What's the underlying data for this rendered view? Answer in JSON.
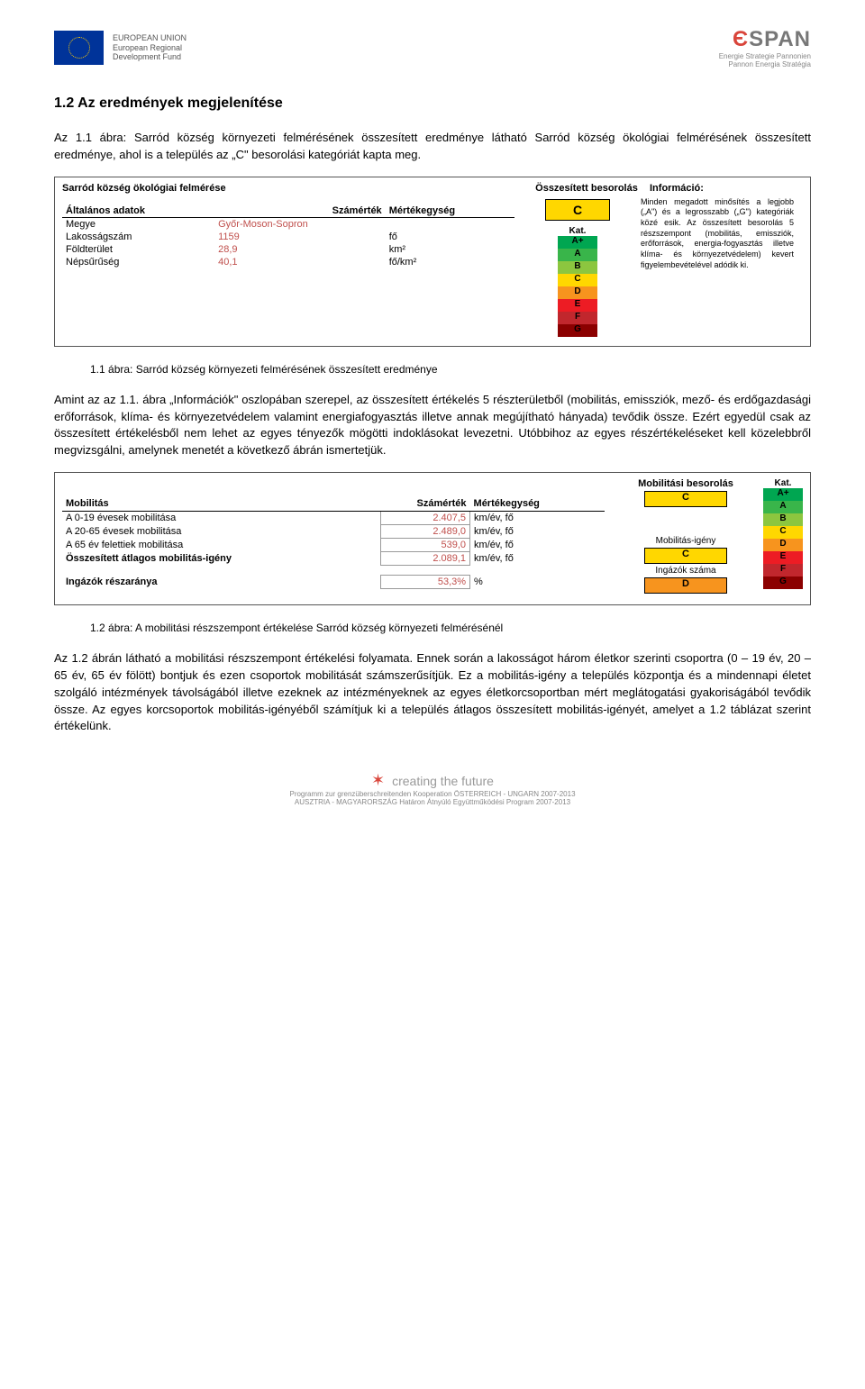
{
  "header": {
    "eu_text": "EUROPEAN UNION\nEuropean Regional\nDevelopment Fund",
    "espan_sub": "Energie Strategie Pannonien\nPannon Energia Stratégia"
  },
  "section_title": "1.2    Az eredmények megjelenítése",
  "intro_para": "Az 1.1 ábra: Sarród község környezeti felmérésének összesített eredménye látható Sarród község ökológiai felmérésének összesített eredménye, ahol is a település az „C\" besorolási kategóriát kapta meg.",
  "panel1": {
    "title": "Sarród község ökológiai felmérése",
    "legend_label": "Összesített besorolás",
    "info_label": "Információ:",
    "grade": "C",
    "grade_bg": "#ffd700",
    "table": {
      "headers": [
        "Általános adatok",
        "Számérték",
        "Mértékegység"
      ],
      "rows": [
        [
          "Megye",
          "Győr-Moson-Sopron",
          ""
        ],
        [
          "Lakosságszám",
          "1159",
          "fő"
        ],
        [
          "Földterület",
          "28,9",
          "km²"
        ],
        [
          "Népsűrűség",
          "40,1",
          "fő/km²"
        ]
      ]
    },
    "info_text": "Minden megadott minősítés a legjobb („A\") és a legrosszabb („G\") kategóriák közé esik. Az összesített besorolás 5 részszempont (mobilitás, emissziók, erőforrások, energia-fogyasztás illetve klíma- és környezetvédelem) kevert figyelembevételével adódik ki."
  },
  "kat_scale": [
    {
      "label": "A+",
      "bg": "#00a651"
    },
    {
      "label": "A",
      "bg": "#39b54a"
    },
    {
      "label": "B",
      "bg": "#8cc63f"
    },
    {
      "label": "C",
      "bg": "#ffd700"
    },
    {
      "label": "D",
      "bg": "#f7941e"
    },
    {
      "label": "E",
      "bg": "#ed1c24"
    },
    {
      "label": "F",
      "bg": "#c1272d"
    },
    {
      "label": "G",
      "bg": "#8b0000"
    }
  ],
  "fig1_caption": "1.1 ábra: Sarród község környezeti felmérésének összesített eredménye",
  "mid_para": "Amint az az 1.1. ábra „Információk\" oszlopában szerepel, az összesített értékelés 5 részterületből (mobilitás, emissziók, mező- és erdőgazdasági erőforrások, klíma- és környezetvédelem valamint energiafogyasztás illetve annak megújítható hányada) tevődik össze. Ezért egyedül csak az összesített értékelésből nem lehet az egyes tényezők mögötti indoklásokat levezetni. Utóbbihoz az egyes részértékeléseket kell közelebbről megvizsgálni, amelynek menetét a következő ábrán ismertetjük.",
  "panel2": {
    "legend_label": "Mobilitási besorolás",
    "title": "Mobilitás",
    "headers": [
      "Mobilitás",
      "Számérték",
      "Mértékegység"
    ],
    "rows": [
      [
        "A 0-19 évesek mobilitása",
        "2.407,5",
        "km/év, fő"
      ],
      [
        "A 20-65 évesek mobilitása",
        "2.489,0",
        "km/év, fő"
      ],
      [
        "A 65 év felettiek mobilitása",
        "539,0",
        "km/év, fő"
      ],
      [
        "Összesített átlagos mobilitás-igény",
        "2.089,1",
        "km/év, fő"
      ],
      [
        "Ingázók részaránya",
        "53,3%",
        "%"
      ]
    ],
    "side_grade": "C",
    "side_grade_bg": "#ffd700",
    "sub1": {
      "label": "Mobilitás-igény",
      "grade": "C",
      "bg": "#ffd700"
    },
    "sub2": {
      "label": "Ingázók száma",
      "grade": "D",
      "bg": "#f7941e"
    }
  },
  "fig2_caption": "1.2 ábra: A mobilitási részszempont értékelése Sarród község környezeti felmérésénél",
  "end_para": "Az 1.2 ábrán látható a mobilitási részszempont értékelési folyamata. Ennek során a lakosságot három életkor szerinti csoportra (0 – 19 év, 20 – 65 év, 65 év fölött) bontjuk és ezen csoportok mobilitását számszerűsítjük. Ez a mobilitás-igény a település központja és a mindennapi életet szolgáló intézmények távolságából illetve ezeknek az intézményeknek az egyes életkorcsoportban mért meglátogatási gyakoriságából tevődik össze. Az egyes korcsoportok mobilitás-igényéből számítjuk ki a település átlagos összesített mobilitás-igényét, amelyet a 1.2 táblázat szerint értékelünk.",
  "footer": {
    "brand": "creating the future",
    "line1": "Programm zur grenzüberschreitenden Kooperation ÖSTERREICH - UNGARN 2007-2013",
    "line2": "AUSZTRIA - MAGYARORSZÁG Határon Átnyúló Együttműködési Program 2007-2013"
  }
}
